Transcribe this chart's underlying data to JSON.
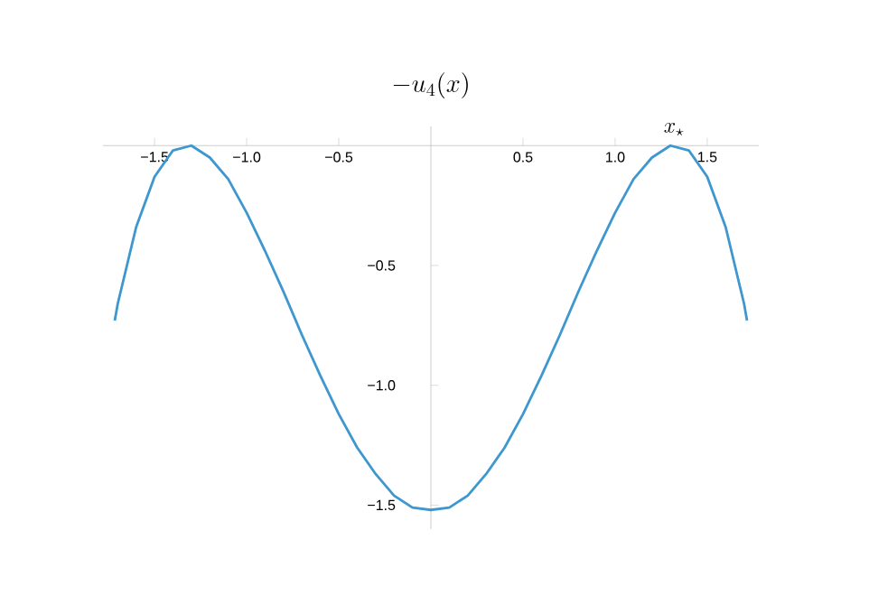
{
  "chart_data": {
    "type": "line",
    "title": "-u_4(x)",
    "x": [
      -1.716,
      -1.7,
      -1.6,
      -1.5,
      -1.4,
      -1.3,
      -1.2,
      -1.1,
      -1.0,
      -0.9,
      -0.8,
      -0.7,
      -0.6,
      -0.5,
      -0.4,
      -0.3,
      -0.2,
      -0.1,
      0,
      0.1,
      0.2,
      0.3,
      0.4,
      0.5,
      0.6,
      0.7,
      0.8,
      0.9,
      1.0,
      1.1,
      1.2,
      1.3,
      1.4,
      1.5,
      1.6,
      1.7,
      1.716
    ],
    "series": [
      {
        "color": "#3e97cf",
        "values": [
          -0.73,
          -0.66,
          -0.34,
          -0.13,
          -0.02,
          0,
          -0.05,
          -0.14,
          -0.28,
          -0.44,
          -0.61,
          -0.79,
          -0.96,
          -1.12,
          -1.26,
          -1.37,
          -1.46,
          -1.51,
          -1.52,
          -1.51,
          -1.46,
          -1.37,
          -1.26,
          -1.12,
          -0.96,
          -0.79,
          -0.61,
          -0.44,
          -0.28,
          -0.14,
          -0.05,
          0,
          -0.02,
          -0.13,
          -0.34,
          -0.66,
          -0.73
        ]
      }
    ],
    "xlim": [
      -1.78,
      1.78
    ],
    "ylim": [
      -1.6,
      0.08
    ],
    "xticks": [
      {
        "value": -1.5,
        "label": "−1.5"
      },
      {
        "value": -1.0,
        "label": "−1.0"
      },
      {
        "value": -0.5,
        "label": "−0.5"
      },
      {
        "value": 0.5,
        "label": "0.5"
      },
      {
        "value": 1.0,
        "label": "1.0"
      },
      {
        "value": 1.5,
        "label": "1.5"
      }
    ],
    "yticks": [
      {
        "value": -0.5,
        "label": "−0.5"
      },
      {
        "value": -1.0,
        "label": "−1.0"
      },
      {
        "value": -1.5,
        "label": "−1.5"
      }
    ],
    "annotations": [
      {
        "text": "x_\\star",
        "x": 1.32,
        "y": 0
      }
    ],
    "marker": "none",
    "line_style": "solid"
  }
}
